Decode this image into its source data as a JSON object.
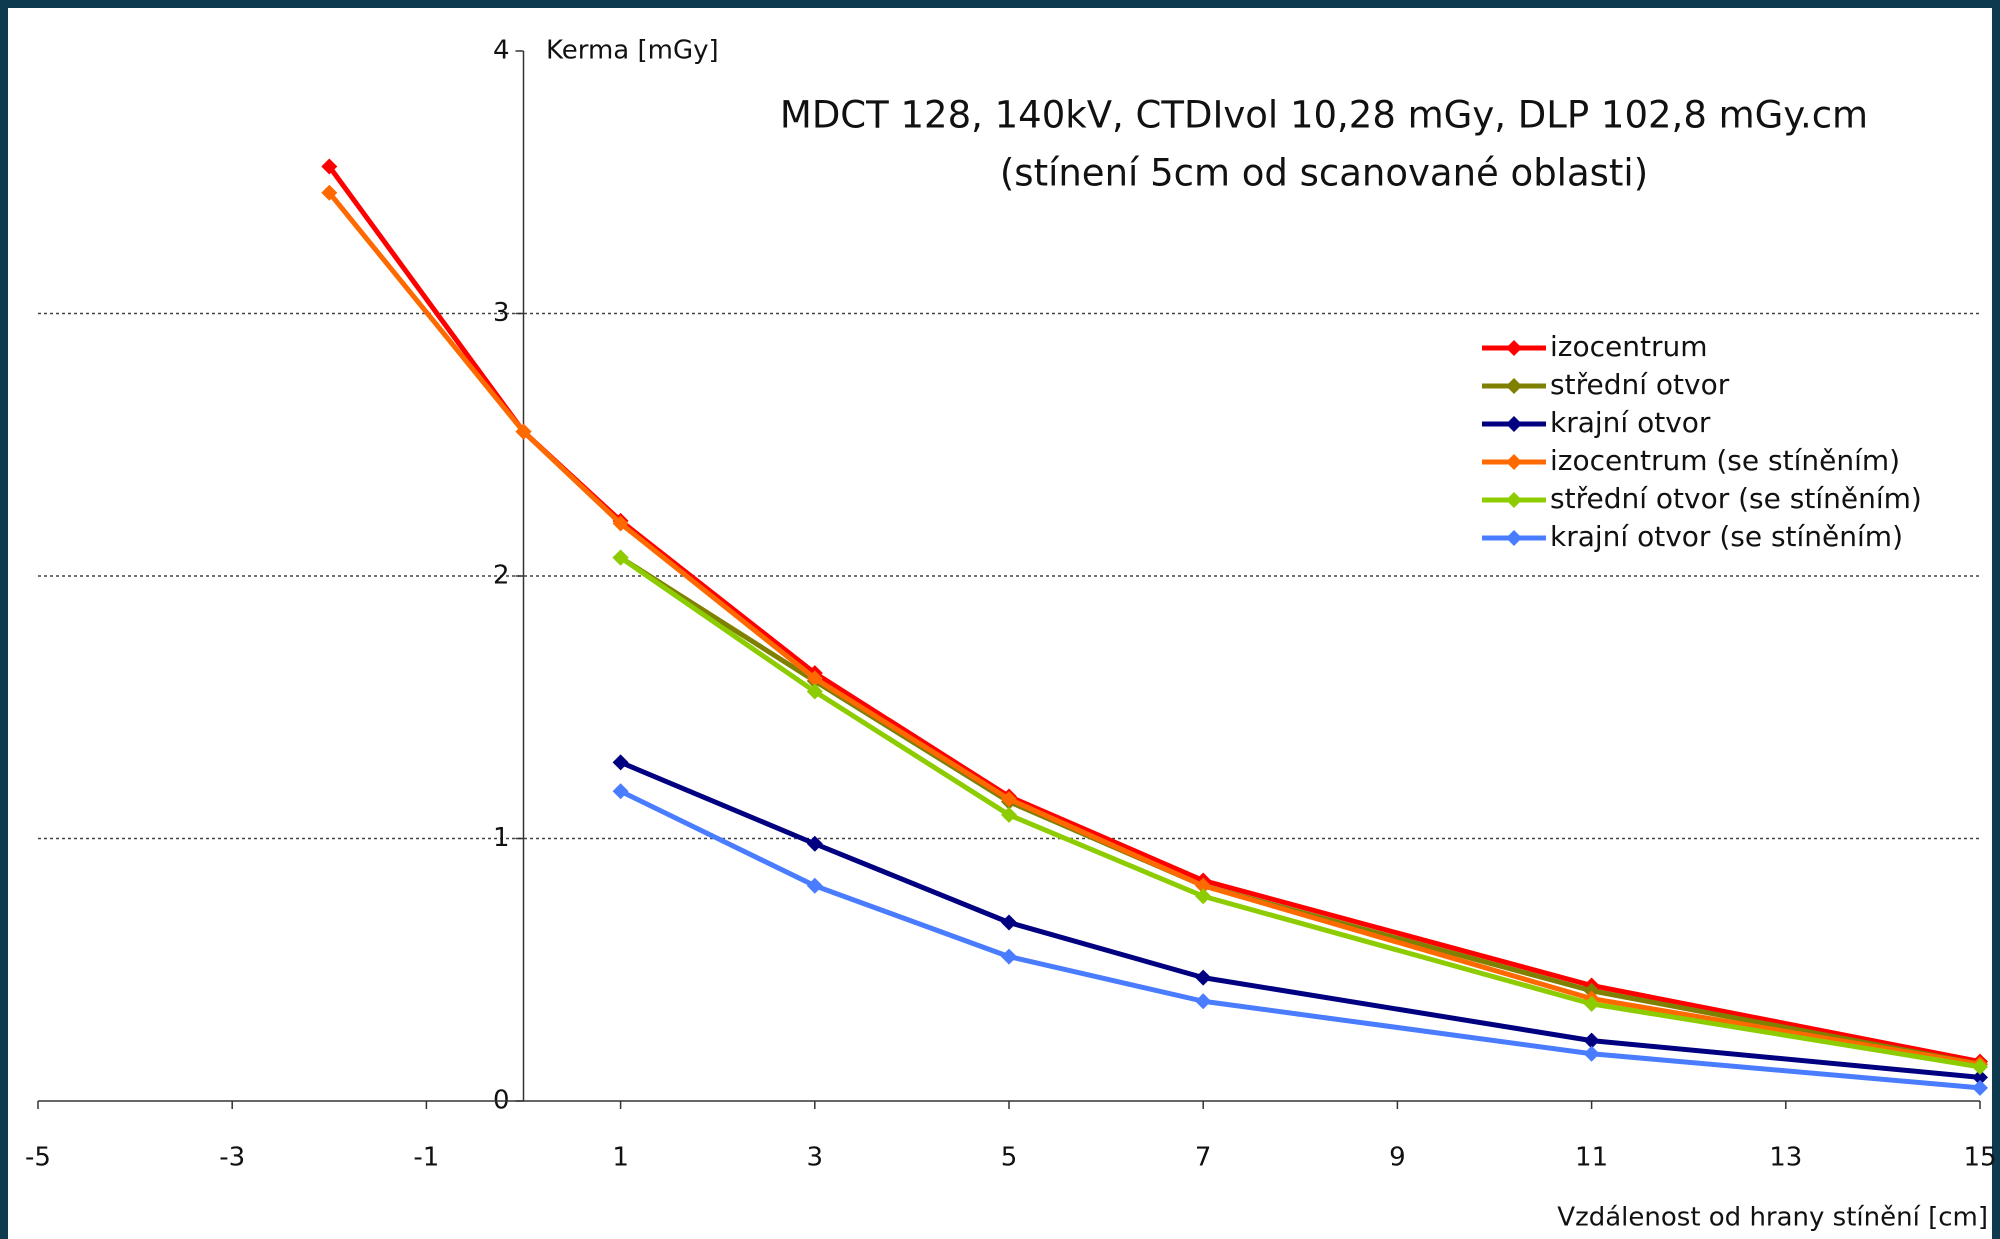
{
  "chart_data": {
    "type": "line",
    "title": "MDCT 128, 140kV, CTDIvol 10,28 mGy, DLP 102,8 mGy.cm",
    "subtitle": "(stínení 5cm od scanované oblasti)",
    "y_label": "Kerma [mGy]",
    "x_label": "Vzdálenost od hrany stínění [cm]",
    "x": [
      -2,
      0,
      1,
      3,
      5,
      7,
      11,
      15
    ],
    "series": [
      {
        "name": "izocentrum",
        "color": "#ff0000",
        "values": [
          3.56,
          2.55,
          2.21,
          1.63,
          1.16,
          0.84,
          0.44,
          0.15
        ]
      },
      {
        "name": "střední otvor",
        "color": "#7f7f00",
        "values": [
          null,
          null,
          2.07,
          1.6,
          1.14,
          0.82,
          0.42,
          0.14
        ]
      },
      {
        "name": "krajní otvor",
        "color": "#000080",
        "values": [
          null,
          null,
          1.29,
          0.98,
          0.68,
          0.47,
          0.23,
          0.09
        ]
      },
      {
        "name": "izocentrum (se stíněním)",
        "color": "#ff6a00",
        "values": [
          3.46,
          2.55,
          2.2,
          1.61,
          1.15,
          0.82,
          0.39,
          0.14
        ]
      },
      {
        "name": "střední otvor (se stíněním)",
        "color": "#8ccc00",
        "values": [
          null,
          null,
          2.07,
          1.56,
          1.09,
          0.78,
          0.37,
          0.13
        ]
      },
      {
        "name": "krajní otvor (se stíněním)",
        "color": "#4a7cff",
        "values": [
          null,
          null,
          1.18,
          0.82,
          0.55,
          0.38,
          0.18,
          0.05
        ]
      }
    ],
    "xlim": [
      -5,
      15
    ],
    "xticks": [
      -5,
      -3,
      -1,
      1,
      3,
      5,
      7,
      9,
      11,
      13,
      15
    ],
    "ylim": [
      0,
      4
    ],
    "yticks": [
      0,
      1,
      2,
      3,
      4
    ],
    "grid": true,
    "legend": "right"
  }
}
